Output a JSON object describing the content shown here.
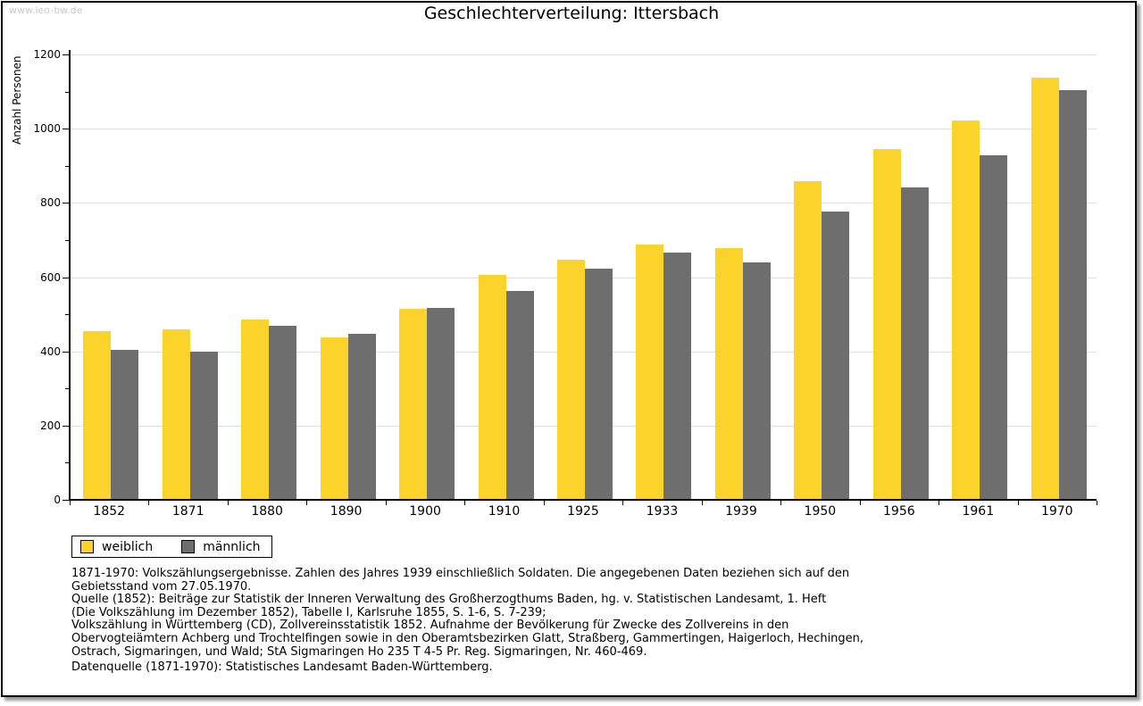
{
  "watermark": "www.leo-bw.de",
  "title": "Geschlechterverteilung: Ittersbach",
  "chart_data": {
    "type": "bar",
    "title": "Geschlechterverteilung: Ittersbach",
    "xlabel": "",
    "ylabel": "Anzahl Personen",
    "ylim": [
      0,
      1200
    ],
    "ytick_step": 200,
    "yminor_step": 100,
    "grid": "horizontal-major",
    "legend_position": "bottom-left",
    "categories": [
      "1852",
      "1871",
      "1880",
      "1890",
      "1900",
      "1910",
      "1925",
      "1933",
      "1939",
      "1950",
      "1956",
      "1961",
      "1970"
    ],
    "series": [
      {
        "name": "weiblich",
        "color": "#fcd32b",
        "values": [
          455,
          460,
          485,
          438,
          515,
          606,
          647,
          688,
          678,
          858,
          945,
          1022,
          1137
        ]
      },
      {
        "name": "männlich",
        "color": "#6e6e6e",
        "values": [
          405,
          400,
          468,
          448,
          518,
          563,
          623,
          667,
          640,
          777,
          842,
          929,
          1104
        ]
      }
    ]
  },
  "legend": {
    "items": [
      {
        "label": "weiblich",
        "color": "#fcd32b"
      },
      {
        "label": "männlich",
        "color": "#6e6e6e"
      }
    ]
  },
  "footnotes": {
    "lines": [
      "1871-1970: Volkszählungsergebnisse. Zahlen des Jahres 1939 einschließlich Soldaten. Die angegebenen Daten beziehen sich auf den",
      "Gebietsstand vom 27.05.1970.",
      "Quelle (1852): Beiträge zur Statistik der Inneren Verwaltung des Großherzogthums Baden, hg. v. Statistischen Landesamt, 1. Heft",
      "(Die Volkszählung im Dezember 1852), Tabelle I, Karlsruhe 1855, S. 1-6, S. 7-239;",
      "Volkszählung in Württemberg (CD), Zollvereinsstatistik 1852. Aufnahme der Bevölkerung für Zwecke des Zollvereins in den",
      "Obervogteiämtern Achberg und Trochtelfingen sowie in den Oberamtsbezirken Glatt, Straßberg, Gammertingen, Haigerloch, Hechingen,",
      "Ostrach, Sigmaringen, und Wald; StA Sigmaringen Ho 235 T 4-5 Pr. Reg. Sigmaringen, Nr. 460-469."
    ],
    "datasource": "Datenquelle (1871-1970): Statistisches Landesamt Baden-Württemberg."
  }
}
